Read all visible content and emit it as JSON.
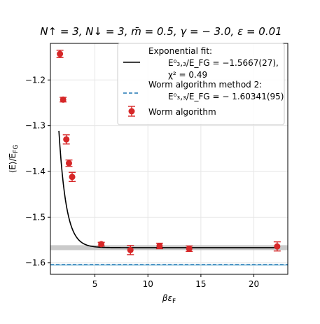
{
  "chart_data": {
    "type": "scatter",
    "title": "N↑ = 3, N↓ = 3, m̄ = 0.5, γ = − 3.0, ε = 0.01",
    "xlabel": "βε",
    "xlabel_sub": "F",
    "ylabel": "⟨E⟩/E",
    "ylabel_sub": "FG",
    "xlim": [
      0.8,
      23.2
    ],
    "ylim": [
      -1.625,
      -1.12
    ],
    "xticks": [
      5,
      10,
      15,
      20
    ],
    "xtick_labels": [
      "5",
      "10",
      "15",
      "20"
    ],
    "yticks": [
      -1.2,
      -1.3,
      -1.4,
      -1.5,
      -1.6
    ],
    "ytick_labels": [
      "−1.2",
      "−1.3",
      "−1.4",
      "−1.5",
      "−1.6"
    ],
    "grid": true,
    "legend_position": "top-right",
    "series": [
      {
        "name": "Worm algorithm",
        "kind": "errorbar",
        "color": "#d62728",
        "points": [
          {
            "x": 1.7,
            "y": -1.143,
            "err": 0.008
          },
          {
            "x": 2.0,
            "y": -1.243,
            "err": 0.005
          },
          {
            "x": 2.3,
            "y": -1.33,
            "err": 0.01
          },
          {
            "x": 2.55,
            "y": -1.382,
            "err": 0.007
          },
          {
            "x": 2.85,
            "y": -1.412,
            "err": 0.01
          },
          {
            "x": 5.6,
            "y": -1.559,
            "err": 0.004
          },
          {
            "x": 8.35,
            "y": -1.572,
            "err": 0.01
          },
          {
            "x": 11.1,
            "y": -1.563,
            "err": 0.006
          },
          {
            "x": 13.9,
            "y": -1.569,
            "err": 0.006
          },
          {
            "x": 22.2,
            "y": -1.564,
            "err": 0.01
          }
        ]
      },
      {
        "name": "Exponential fit:",
        "kind": "fit",
        "color": "#000000",
        "asymptote": -1.5667,
        "amplitude": 2.6,
        "rate": 1.45,
        "x_start": 1.6,
        "x_end": 22.2,
        "band": 0.0027
      },
      {
        "name": "Worm algorithm method 2:",
        "kind": "hline",
        "color": "#1f77b4",
        "y": -1.60341,
        "band": 0.00095
      }
    ],
    "legend": {
      "fit_label": "Exponential fit:",
      "fit_energy": "E⁰₃,₃/E_FG = −1.5667(27),",
      "fit_chi": "χ² = 0.49",
      "method2_label": "Worm algorithm method 2:",
      "method2_energy": "E⁰₃,₃/E_FG = − 1.60341(95)",
      "worm_label": "Worm algorithm"
    }
  }
}
